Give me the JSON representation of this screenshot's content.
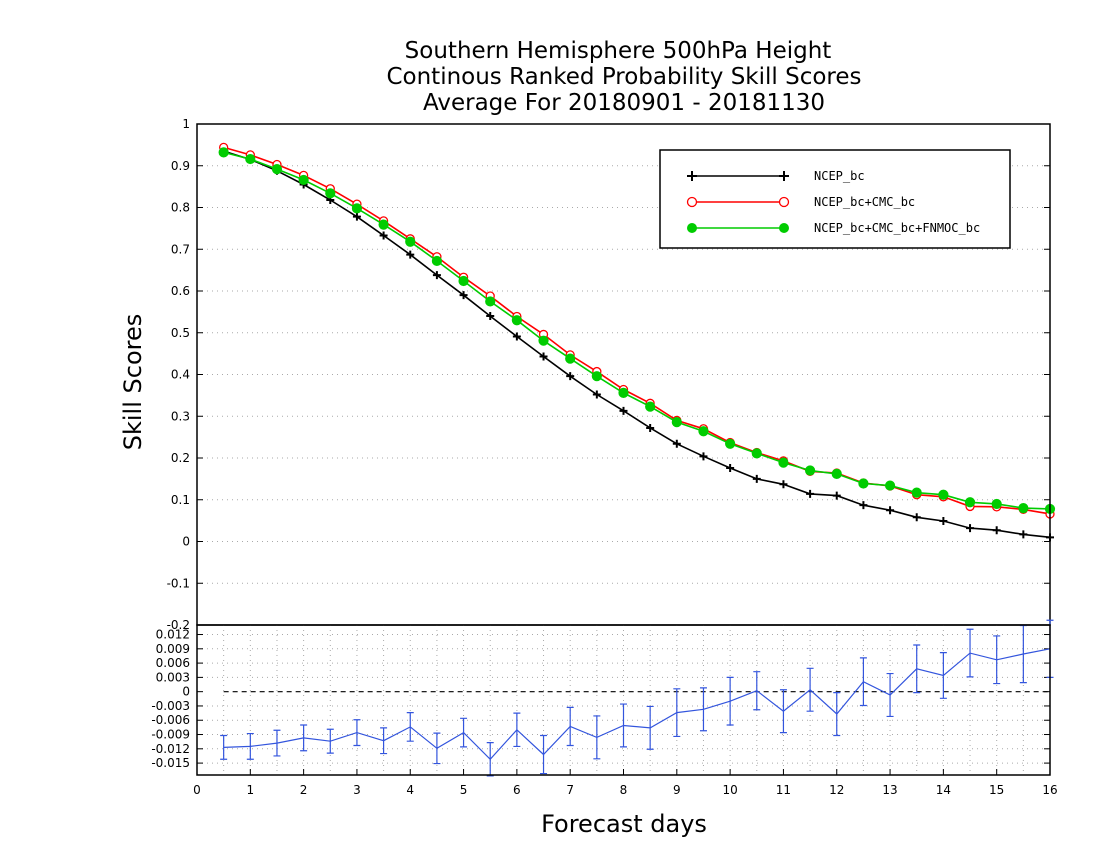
{
  "chart_data": [
    {
      "type": "line",
      "title": [
        "Southern Hemisphere 500hPa Height",
        "Continous Ranked Probability Skill Scores",
        "Average For 20180901 - 20181130"
      ],
      "xlabel": "Forecast days",
      "ylabel": "Skill Scores",
      "xlim": [
        0,
        16
      ],
      "ylim": [
        -0.2,
        1
      ],
      "yticks": [
        "-0.2",
        "-0.1",
        "0",
        "0.1",
        "0.2",
        "0.3",
        "0.4",
        "0.5",
        "0.6",
        "0.7",
        "0.8",
        "0.9",
        "1"
      ],
      "grid": true,
      "legend_position": "top-right",
      "x": [
        0.5,
        1,
        1.5,
        2,
        2.5,
        3,
        3.5,
        4,
        4.5,
        5,
        5.5,
        6,
        6.5,
        7,
        7.5,
        8,
        8.5,
        9,
        9.5,
        10,
        10.5,
        11,
        11.5,
        12,
        12.5,
        13,
        13.5,
        14,
        14.5,
        15,
        15.5,
        16
      ],
      "series": [
        {
          "name": "NCEP_bc",
          "color": "#000000",
          "marker": "plus",
          "values": [
            0.935,
            0.915,
            0.888,
            0.855,
            0.818,
            0.778,
            0.733,
            0.687,
            0.638,
            0.59,
            0.54,
            0.491,
            0.443,
            0.396,
            0.352,
            0.313,
            0.272,
            0.234,
            0.204,
            0.176,
            0.15,
            0.137,
            0.114,
            0.11,
            0.087,
            0.075,
            0.058,
            0.049,
            0.032,
            0.027,
            0.017,
            0.01
          ]
        },
        {
          "name": "NCEP_bc+CMC_bc",
          "color": "#ff0000",
          "marker": "open-circle",
          "values": [
            0.944,
            0.926,
            0.903,
            0.877,
            0.845,
            0.808,
            0.768,
            0.725,
            0.682,
            0.633,
            0.588,
            0.539,
            0.496,
            0.447,
            0.407,
            0.364,
            0.331,
            0.29,
            0.27,
            0.237,
            0.213,
            0.193,
            0.168,
            0.164,
            0.14,
            0.133,
            0.112,
            0.107,
            0.084,
            0.083,
            0.077,
            0.066
          ]
        },
        {
          "name": "NCEP_bc+CMC_bc+FNMOC_bc",
          "color": "#00cc00",
          "marker": "filled-circle",
          "values": [
            0.932,
            0.916,
            0.892,
            0.866,
            0.834,
            0.798,
            0.759,
            0.718,
            0.672,
            0.624,
            0.575,
            0.53,
            0.481,
            0.438,
            0.396,
            0.356,
            0.323,
            0.286,
            0.264,
            0.234,
            0.211,
            0.189,
            0.17,
            0.162,
            0.139,
            0.134,
            0.117,
            0.112,
            0.094,
            0.09,
            0.08,
            0.078
          ]
        }
      ]
    },
    {
      "type": "line",
      "xlim": [
        0,
        16
      ],
      "ylim": [
        -0.0175,
        0.014
      ],
      "xticks": [
        "0",
        "1",
        "2",
        "3",
        "4",
        "5",
        "6",
        "7",
        "8",
        "9",
        "10",
        "11",
        "12",
        "13",
        "14",
        "15",
        "16"
      ],
      "yticks": [
        "0.012",
        "0.009",
        "0.006",
        "0.003",
        "0",
        "-0.003",
        "-0.006",
        "-0.009",
        "-0.012",
        "-0.015"
      ],
      "grid": true,
      "zero_line": "dashed",
      "x": [
        0.5,
        1,
        1.5,
        2,
        2.5,
        3,
        3.5,
        4,
        4.5,
        5,
        5.5,
        6,
        6.5,
        7,
        7.5,
        8,
        8.5,
        9,
        9.5,
        10,
        10.5,
        11,
        11.5,
        12,
        12.5,
        13,
        13.5,
        14,
        14.5,
        15,
        15.5,
        16
      ],
      "series": [
        {
          "color": "#3355dd",
          "error_bars": true,
          "values": [
            -0.0117,
            -0.0115,
            -0.0108,
            -0.0097,
            -0.0104,
            -0.0086,
            -0.0103,
            -0.0074,
            -0.0119,
            -0.0086,
            -0.0142,
            -0.008,
            -0.0132,
            -0.0073,
            -0.0096,
            -0.0071,
            -0.0076,
            -0.0044,
            -0.0037,
            -0.002,
            0.0002,
            -0.0041,
            0.0004,
            -0.0047,
            0.0021,
            -0.0007,
            0.0048,
            0.0034,
            0.0081,
            0.0067,
            0.0079,
            0.009
          ],
          "errors": [
            0.0025,
            0.0027,
            0.0027,
            0.0027,
            0.0025,
            0.0027,
            0.0027,
            0.003,
            0.0032,
            0.003,
            0.0035,
            0.0035,
            0.004,
            0.004,
            0.0045,
            0.0045,
            0.0045,
            0.005,
            0.0045,
            0.005,
            0.004,
            0.0045,
            0.0045,
            0.0045,
            0.005,
            0.0045,
            0.005,
            0.0048,
            0.005,
            0.005,
            0.006,
            0.006
          ]
        }
      ]
    }
  ]
}
